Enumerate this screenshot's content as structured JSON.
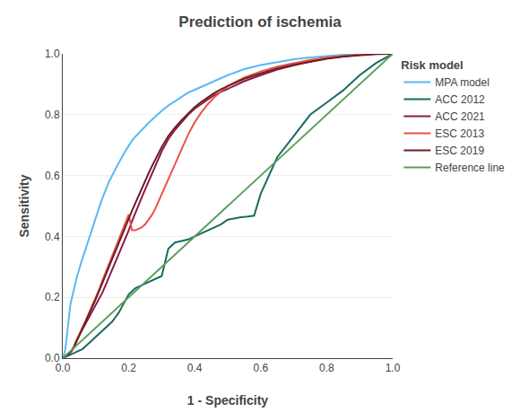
{
  "chart_data": {
    "type": "line",
    "title": "Prediction of ischemia",
    "x_label": "1 - Specificity",
    "y_label": "Sensitivity",
    "legend_title": "Risk model",
    "legend": "right",
    "grid": "y",
    "xlim": [
      0.0,
      1.0
    ],
    "ylim": [
      0.0,
      1.0
    ],
    "xticks": [
      {
        "value": 0.0,
        "label": "0.0"
      },
      0.2,
      0.4,
      0.6,
      0.8,
      {
        "value": 1.0,
        "label": "1.0"
      }
    ],
    "yticks": [
      {
        "value": 0.0,
        "label": "0.0"
      },
      0.2,
      0.4,
      0.6,
      0.8,
      {
        "value": 1.0,
        "label": "1.0"
      }
    ],
    "series": [
      {
        "name": "MPA model",
        "color": "#5BB8F5",
        "x": [
          0.0,
          0.003,
          0.005,
          0.007,
          0.01,
          0.012,
          0.015,
          0.018,
          0.02,
          0.023,
          0.025,
          0.028,
          0.03,
          0.033,
          0.035,
          0.038,
          0.04,
          0.043,
          0.046,
          0.05,
          0.053,
          0.056,
          0.06,
          0.063,
          0.067,
          0.07,
          0.075,
          0.08,
          0.085,
          0.09,
          0.095,
          0.1,
          0.105,
          0.11,
          0.115,
          0.12,
          0.125,
          0.13,
          0.135,
          0.14,
          0.145,
          0.15,
          0.155,
          0.16,
          0.165,
          0.17,
          0.175,
          0.18,
          0.185,
          0.19,
          0.195,
          0.2,
          0.21,
          0.22,
          0.23,
          0.24,
          0.25,
          0.26,
          0.27,
          0.28,
          0.29,
          0.3,
          0.32,
          0.34,
          0.36,
          0.38,
          0.4,
          0.42,
          0.44,
          0.46,
          0.48,
          0.5,
          0.55,
          0.6,
          0.65,
          0.7,
          0.75,
          0.8,
          0.85,
          0.9,
          0.95,
          1.0
        ],
        "values": [
          0.0,
          0.01,
          0.018,
          0.025,
          0.05,
          0.07,
          0.1,
          0.13,
          0.16,
          0.175,
          0.185,
          0.2,
          0.21,
          0.22,
          0.235,
          0.245,
          0.258,
          0.268,
          0.278,
          0.295,
          0.305,
          0.315,
          0.328,
          0.338,
          0.35,
          0.365,
          0.38,
          0.4,
          0.415,
          0.43,
          0.45,
          0.465,
          0.48,
          0.495,
          0.51,
          0.525,
          0.54,
          0.555,
          0.567,
          0.58,
          0.59,
          0.602,
          0.612,
          0.622,
          0.632,
          0.643,
          0.653,
          0.663,
          0.672,
          0.681,
          0.69,
          0.7,
          0.715,
          0.728,
          0.74,
          0.752,
          0.762,
          0.773,
          0.783,
          0.793,
          0.803,
          0.813,
          0.83,
          0.845,
          0.86,
          0.873,
          0.882,
          0.892,
          0.9,
          0.91,
          0.92,
          0.93,
          0.95,
          0.963,
          0.973,
          0.982,
          0.988,
          0.993,
          0.997,
          0.999,
          1.0,
          1.0
        ]
      },
      {
        "name": "ACC 2012",
        "color": "#1B6B5E",
        "x": [
          0.0,
          0.01,
          0.02,
          0.03,
          0.04,
          0.05,
          0.06,
          0.07,
          0.08,
          0.09,
          0.1,
          0.11,
          0.12,
          0.13,
          0.14,
          0.15,
          0.16,
          0.17,
          0.18,
          0.19,
          0.2,
          0.21,
          0.22,
          0.23,
          0.24,
          0.25,
          0.26,
          0.27,
          0.28,
          0.29,
          0.3,
          0.32,
          0.34,
          0.36,
          0.38,
          0.4,
          0.42,
          0.44,
          0.46,
          0.48,
          0.5,
          0.52,
          0.54,
          0.56,
          0.58,
          0.6,
          0.65,
          0.7,
          0.75,
          0.8,
          0.85,
          0.9,
          0.95,
          1.0
        ],
        "values": [
          0.0,
          0.005,
          0.01,
          0.015,
          0.02,
          0.025,
          0.03,
          0.04,
          0.05,
          0.06,
          0.07,
          0.08,
          0.09,
          0.1,
          0.11,
          0.12,
          0.135,
          0.15,
          0.17,
          0.19,
          0.21,
          0.22,
          0.23,
          0.235,
          0.24,
          0.245,
          0.25,
          0.255,
          0.26,
          0.265,
          0.27,
          0.36,
          0.38,
          0.385,
          0.39,
          0.4,
          0.41,
          0.42,
          0.43,
          0.44,
          0.455,
          0.46,
          0.463,
          0.465,
          0.468,
          0.54,
          0.66,
          0.73,
          0.8,
          0.84,
          0.88,
          0.93,
          0.97,
          1.0
        ]
      },
      {
        "name": "ACC 2021",
        "color": "#8B1A4A",
        "x": [
          0.0,
          0.005,
          0.01,
          0.015,
          0.02,
          0.025,
          0.03,
          0.035,
          0.04,
          0.05,
          0.06,
          0.07,
          0.08,
          0.09,
          0.1,
          0.11,
          0.12,
          0.13,
          0.14,
          0.15,
          0.16,
          0.17,
          0.18,
          0.19,
          0.2,
          0.21,
          0.22,
          0.23,
          0.24,
          0.25,
          0.26,
          0.27,
          0.28,
          0.29,
          0.3,
          0.32,
          0.34,
          0.36,
          0.38,
          0.4,
          0.42,
          0.44,
          0.46,
          0.48,
          0.5,
          0.55,
          0.6,
          0.65,
          0.7,
          0.75,
          0.8,
          0.85,
          0.9,
          0.95,
          1.0
        ],
        "values": [
          0.0,
          0.004,
          0.008,
          0.012,
          0.016,
          0.022,
          0.03,
          0.04,
          0.055,
          0.075,
          0.095,
          0.115,
          0.135,
          0.155,
          0.175,
          0.195,
          0.215,
          0.24,
          0.265,
          0.29,
          0.315,
          0.34,
          0.365,
          0.39,
          0.42,
          0.45,
          0.478,
          0.505,
          0.53,
          0.555,
          0.58,
          0.605,
          0.63,
          0.655,
          0.68,
          0.72,
          0.75,
          0.775,
          0.8,
          0.82,
          0.835,
          0.85,
          0.865,
          0.875,
          0.885,
          0.91,
          0.93,
          0.948,
          0.962,
          0.975,
          0.985,
          0.992,
          0.997,
          1.0,
          1.0
        ]
      },
      {
        "name": "ESC 2013",
        "color": "#E8524A",
        "x": [
          0.0,
          0.005,
          0.01,
          0.015,
          0.02,
          0.025,
          0.03,
          0.035,
          0.04,
          0.05,
          0.06,
          0.07,
          0.08,
          0.09,
          0.1,
          0.11,
          0.12,
          0.13,
          0.14,
          0.15,
          0.16,
          0.17,
          0.18,
          0.19,
          0.2,
          0.21,
          0.22,
          0.23,
          0.24,
          0.25,
          0.26,
          0.27,
          0.28,
          0.29,
          0.3,
          0.31,
          0.32,
          0.33,
          0.34,
          0.35,
          0.36,
          0.37,
          0.38,
          0.39,
          0.4,
          0.42,
          0.44,
          0.46,
          0.48,
          0.5,
          0.55,
          0.6,
          0.65,
          0.7,
          0.75,
          0.8,
          0.85,
          0.9,
          0.95,
          1.0
        ],
        "values": [
          0.0,
          0.004,
          0.008,
          0.012,
          0.016,
          0.022,
          0.03,
          0.04,
          0.055,
          0.08,
          0.102,
          0.124,
          0.148,
          0.172,
          0.198,
          0.225,
          0.255,
          0.282,
          0.308,
          0.335,
          0.362,
          0.392,
          0.42,
          0.445,
          0.472,
          0.42,
          0.42,
          0.425,
          0.43,
          0.44,
          0.455,
          0.47,
          0.49,
          0.515,
          0.54,
          0.565,
          0.59,
          0.615,
          0.64,
          0.665,
          0.688,
          0.712,
          0.735,
          0.755,
          0.775,
          0.808,
          0.835,
          0.858,
          0.878,
          0.895,
          0.922,
          0.942,
          0.958,
          0.97,
          0.98,
          0.988,
          0.994,
          0.998,
          1.0,
          1.0
        ]
      },
      {
        "name": "ESC 2019",
        "color": "#6B2020",
        "x": [
          0.0,
          0.005,
          0.01,
          0.015,
          0.02,
          0.025,
          0.03,
          0.035,
          0.04,
          0.05,
          0.06,
          0.07,
          0.08,
          0.09,
          0.1,
          0.11,
          0.12,
          0.13,
          0.14,
          0.15,
          0.16,
          0.17,
          0.18,
          0.19,
          0.2,
          0.21,
          0.22,
          0.23,
          0.24,
          0.25,
          0.26,
          0.27,
          0.28,
          0.29,
          0.3,
          0.32,
          0.34,
          0.36,
          0.38,
          0.4,
          0.42,
          0.44,
          0.46,
          0.48,
          0.5,
          0.55,
          0.6,
          0.65,
          0.7,
          0.75,
          0.8,
          0.85,
          0.9,
          0.95,
          1.0
        ],
        "values": [
          0.0,
          0.003,
          0.007,
          0.011,
          0.015,
          0.02,
          0.028,
          0.038,
          0.05,
          0.072,
          0.095,
          0.118,
          0.142,
          0.168,
          0.194,
          0.22,
          0.248,
          0.275,
          0.3,
          0.326,
          0.352,
          0.38,
          0.408,
          0.433,
          0.458,
          0.485,
          0.51,
          0.536,
          0.56,
          0.583,
          0.607,
          0.63,
          0.653,
          0.673,
          0.694,
          0.73,
          0.758,
          0.782,
          0.805,
          0.825,
          0.842,
          0.858,
          0.872,
          0.884,
          0.894,
          0.918,
          0.936,
          0.952,
          0.964,
          0.975,
          0.984,
          0.991,
          0.996,
          0.999,
          1.0
        ]
      },
      {
        "name": "Reference line",
        "color": "#5A9E5A",
        "x": [
          0.0,
          1.0
        ],
        "values": [
          0.0,
          1.0
        ]
      }
    ]
  }
}
